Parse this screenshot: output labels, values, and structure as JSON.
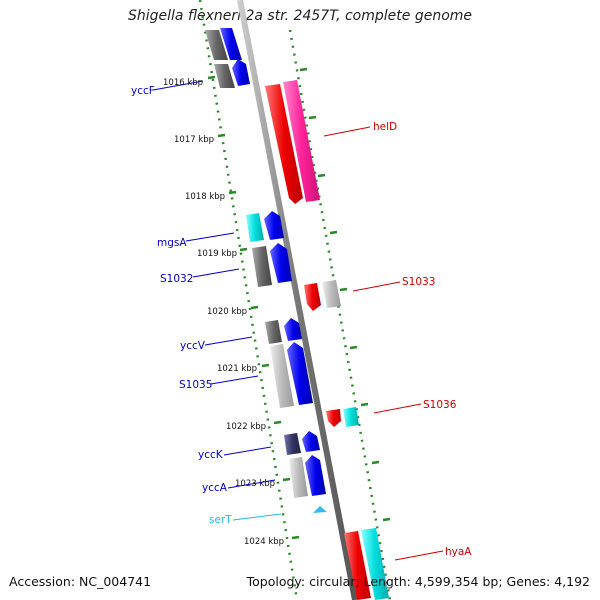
{
  "title": "Shigella flexneri 2a str. 2457T, complete genome",
  "footer": {
    "accession": "Accession: NC_004741",
    "topology": "Topology: circular; Length: 4,599,354 bp; Genes: 4,192"
  },
  "kbp_ticks": [
    "1016 kbp",
    "1017 kbp",
    "1018 kbp",
    "1019 kbp",
    "1020 kbp",
    "1021 kbp",
    "1022 kbp",
    "1023 kbp",
    "1024 kbp"
  ],
  "genes": {
    "yccF": {
      "label": "yccF",
      "color": "#0000cc"
    },
    "helD": {
      "label": "helD",
      "color": "#cc0000"
    },
    "mgsA": {
      "label": "mgsA",
      "color": "#0000cc"
    },
    "S1032": {
      "label": "S1032",
      "color": "#0000cc"
    },
    "S1033": {
      "label": "S1033",
      "color": "#cc0000"
    },
    "yccV": {
      "label": "yccV",
      "color": "#0000cc"
    },
    "S1035": {
      "label": "S1035",
      "color": "#0000cc"
    },
    "S1036": {
      "label": "S1036",
      "color": "#cc0000"
    },
    "yccK": {
      "label": "yccK",
      "color": "#0000cc"
    },
    "yccA": {
      "label": "yccA",
      "color": "#0000cc"
    },
    "serT": {
      "label": "serT",
      "color": "#22bbdd"
    },
    "hyaA": {
      "label": "hyaA",
      "color": "#cc0000"
    }
  }
}
